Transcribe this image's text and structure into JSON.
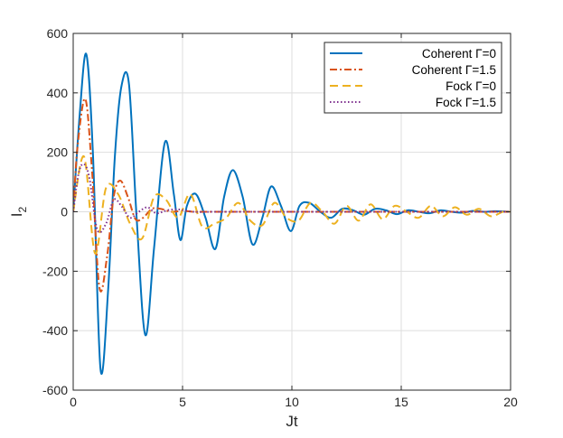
{
  "chart_data": {
    "type": "line",
    "xlabel": "Jt",
    "ylabel": "I",
    "ylabel_subscript": "2",
    "xlim": [
      0,
      20
    ],
    "ylim": [
      -600,
      600
    ],
    "xticks": [
      0,
      5,
      10,
      15,
      20
    ],
    "yticks": [
      -600,
      -400,
      -200,
      0,
      200,
      400,
      600
    ],
    "grid": true,
    "legend_position": "top-right",
    "series": [
      {
        "name": "Coherent Γ=0",
        "color": "#0072BD",
        "line_style": "solid",
        "x": [
          0,
          0.3,
          0.6,
          0.9,
          1.25,
          1.6,
          1.9,
          2.2,
          2.55,
          2.9,
          3.3,
          3.7,
          4.2,
          4.6,
          4.9,
          5.2,
          5.6,
          6.05,
          6.5,
          6.9,
          7.3,
          7.75,
          8.2,
          8.65,
          9.05,
          9.5,
          9.95,
          10.35,
          10.8,
          11.3,
          11.8,
          12.3,
          12.8,
          13.3,
          13.8,
          14.3,
          14.8,
          15.3,
          15.8,
          16.3,
          16.8,
          17.3,
          17.8,
          18.3,
          18.8,
          19.3,
          20
        ],
        "values": [
          0,
          330,
          530,
          200,
          -530,
          -260,
          180,
          420,
          430,
          -20,
          -415,
          -120,
          235,
          60,
          -95,
          20,
          60,
          -20,
          -125,
          50,
          140,
          50,
          -110,
          -20,
          85,
          20,
          -65,
          20,
          30,
          0,
          -20,
          10,
          5,
          -10,
          10,
          5,
          -8,
          5,
          0,
          -5,
          5,
          0,
          -3,
          3,
          0,
          2,
          0
        ]
      },
      {
        "name": "Coherent Γ=1.5",
        "color": "#D95319",
        "line_style": "dashdot",
        "x": [
          0,
          0.2,
          0.55,
          0.85,
          1.2,
          1.55,
          1.85,
          2.15,
          2.5,
          2.85,
          3.2,
          3.6,
          4.0,
          4.5,
          5.0,
          5.5,
          6.0,
          7.0,
          8.0,
          10.0,
          12.0,
          15.0,
          20.0
        ],
        "values": [
          0,
          220,
          380,
          150,
          -255,
          -150,
          50,
          105,
          50,
          -25,
          -20,
          10,
          10,
          0,
          3,
          0,
          0,
          0,
          0,
          0,
          0,
          0,
          0
        ]
      },
      {
        "name": "Fock Γ=0",
        "color": "#EDB120",
        "line_style": "dashed",
        "x": [
          0,
          0.5,
          1.0,
          1.5,
          2.05,
          2.6,
          3.15,
          3.7,
          4.25,
          4.8,
          5.35,
          5.9,
          6.45,
          7.0,
          7.55,
          8.1,
          8.65,
          9.2,
          9.75,
          10.3,
          10.85,
          11.4,
          11.95,
          12.5,
          13.05,
          13.6,
          14.15,
          14.7,
          15.25,
          15.8,
          16.35,
          16.9,
          17.45,
          18.0,
          18.55,
          19.1,
          19.65,
          20.0
        ],
        "values": [
          0,
          185,
          -140,
          80,
          60,
          -40,
          -90,
          50,
          40,
          -20,
          60,
          -50,
          -40,
          -20,
          30,
          -30,
          -45,
          30,
          -20,
          -30,
          30,
          0,
          -40,
          20,
          -30,
          25,
          -25,
          20,
          0,
          -20,
          20,
          -15,
          15,
          -10,
          10,
          -15,
          0,
          0
        ]
      },
      {
        "name": "Fock Γ=1.5",
        "color": "#7E2F8E",
        "line_style": "dotted",
        "x": [
          0,
          0.25,
          0.5,
          0.75,
          1.1,
          1.5,
          1.85,
          2.2,
          2.6,
          3.0,
          3.4,
          3.8,
          4.3,
          4.8,
          5.5,
          6.5,
          8.0,
          10.0,
          15.0,
          20.0
        ],
        "values": [
          0,
          130,
          160,
          110,
          -60,
          -40,
          40,
          20,
          -20,
          0,
          15,
          -5,
          5,
          8,
          0,
          0,
          0,
          0,
          0,
          0
        ]
      }
    ]
  }
}
